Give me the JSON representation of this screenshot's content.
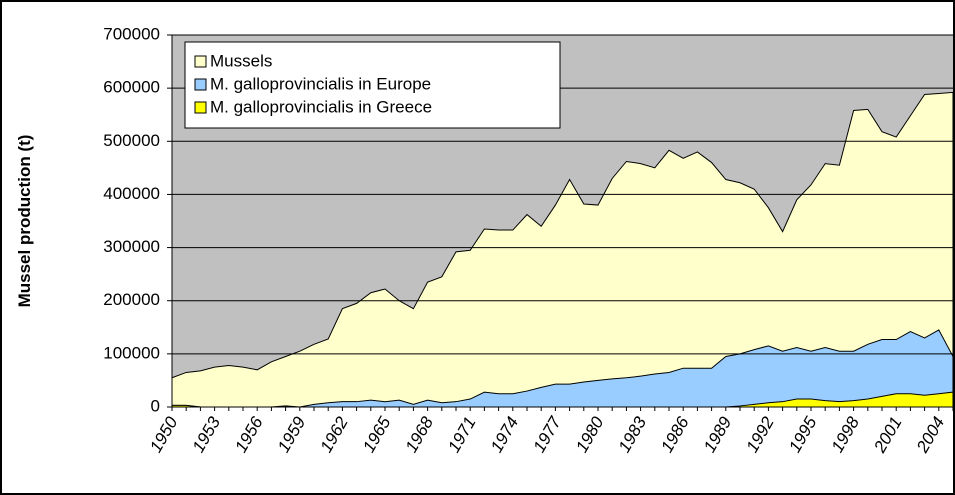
{
  "chart_data": {
    "type": "area",
    "y_label": "Mussel production (t)",
    "categories": [
      "1950",
      null,
      null,
      "1953",
      null,
      null,
      "1956",
      null,
      null,
      "1959",
      null,
      null,
      "1962",
      null,
      null,
      "1965",
      null,
      null,
      "1968",
      null,
      null,
      "1971",
      null,
      null,
      "1974",
      null,
      null,
      "1977",
      null,
      null,
      "1980",
      null,
      null,
      "1983",
      null,
      null,
      "1986",
      null,
      null,
      "1989",
      null,
      null,
      "1992",
      null,
      null,
      "1995",
      null,
      null,
      "1998",
      null,
      null,
      "2001",
      null,
      null,
      "2004",
      null
    ],
    "series": [
      {
        "name": "Mussels",
        "color": "#ffffcc",
        "values": [
          55000,
          65000,
          68000,
          75000,
          78000,
          75000,
          70000,
          85000,
          95000,
          105000,
          118000,
          128000,
          185000,
          195000,
          215000,
          222000,
          200000,
          185000,
          235000,
          245000,
          292000,
          295000,
          335000,
          333000,
          333000,
          362000,
          340000,
          380000,
          428000,
          382000,
          380000,
          430000,
          462000,
          458000,
          450000,
          483000,
          468000,
          480000,
          460000,
          428000,
          422000,
          410000,
          375000,
          330000,
          390000,
          418000,
          458000,
          455000,
          558000,
          560000,
          518000,
          508000,
          548000,
          588000,
          590000,
          592000
        ]
      },
      {
        "name": "M. galloprovincialis in Europe",
        "color": "#99ccff",
        "values": [
          3000,
          3000,
          0,
          0,
          0,
          0,
          0,
          0,
          2000,
          0,
          5000,
          8000,
          10000,
          10000,
          13000,
          10000,
          13000,
          5000,
          13000,
          8000,
          10000,
          15000,
          28000,
          25000,
          25000,
          30000,
          37000,
          43000,
          43000,
          47000,
          50000,
          53000,
          55000,
          58000,
          62000,
          65000,
          73000,
          73000,
          73000,
          95000,
          100000,
          108000,
          115000,
          105000,
          112000,
          105000,
          112000,
          105000,
          105000,
          118000,
          127000,
          127000,
          142000,
          130000,
          145000,
          95000
        ]
      },
      {
        "name": "M. galloprovincialis in Greece",
        "color": "#ffff00",
        "values": [
          3000,
          3000,
          0,
          0,
          0,
          0,
          0,
          0,
          0,
          0,
          0,
          0,
          0,
          0,
          0,
          0,
          0,
          0,
          0,
          0,
          0,
          0,
          0,
          0,
          0,
          0,
          0,
          0,
          0,
          0,
          0,
          0,
          0,
          0,
          0,
          0,
          0,
          0,
          0,
          0,
          2000,
          5000,
          8000,
          10000,
          15000,
          15000,
          12000,
          10000,
          12000,
          15000,
          20000,
          25000,
          25000,
          22000,
          25000,
          28000
        ]
      }
    ],
    "ylim": [
      0,
      700000
    ],
    "yticks": [
      0,
      100000,
      200000,
      300000,
      400000,
      500000,
      600000,
      700000
    ],
    "grid": true,
    "plot_background": "#c0c0c0",
    "legend": "upper left"
  }
}
